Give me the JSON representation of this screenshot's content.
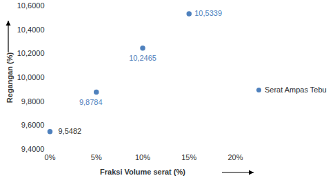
{
  "chart_data": {
    "type": "scatter",
    "x_label": "Fraksi Volume serat (%)",
    "y_label": "Regangan (%)",
    "x": [
      0,
      5,
      10,
      15
    ],
    "series": [
      {
        "name": "Serat Ampas Tebu",
        "color": "#4f81bd",
        "marker": "circle",
        "values": [
          9.5482,
          9.8784,
          10.2465,
          10.5339
        ],
        "value_labels": [
          "9,5482",
          "9,8784",
          "10,2465",
          "10,5339"
        ]
      }
    ],
    "xlim": [
      0,
      20
    ],
    "xticks": [
      {
        "value": 0,
        "label": "0%"
      },
      {
        "value": 5,
        "label": "5%"
      },
      {
        "value": 10,
        "label": "10%"
      },
      {
        "value": 15,
        "label": "15%"
      },
      {
        "value": 20,
        "label": "20%"
      }
    ],
    "ylim": [
      9.4,
      10.6
    ],
    "yticks": [
      {
        "value": 9.4,
        "label": "9,4000"
      },
      {
        "value": 9.6,
        "label": "9,6000"
      },
      {
        "value": 9.8,
        "label": "9,8000"
      },
      {
        "value": 10.0,
        "label": "10,0000"
      },
      {
        "value": 10.2,
        "label": "10,2000"
      },
      {
        "value": 10.4,
        "label": "10,4000"
      },
      {
        "value": 10.6,
        "label": "10,6000"
      }
    ],
    "data_labels": true,
    "legend": "right",
    "grid": false
  }
}
